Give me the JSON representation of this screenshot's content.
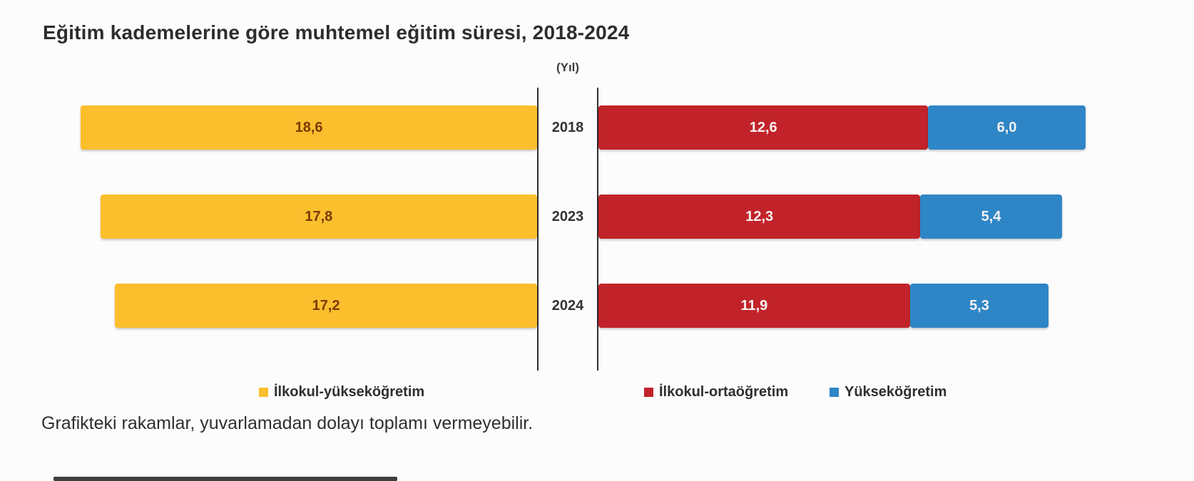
{
  "title": "Eğitim kademelerine göre muhtemel eğitim süresi, 2018-2024",
  "axis_unit_label": "(Yıl)",
  "footnote": "Grafikteki rakamlar, yuvarlamadan dolayı toplamı vermeyebilir.",
  "colors": {
    "background": "#FDFCFC",
    "yellow_series": "#FBBE2D",
    "red_series": "#C2232A",
    "blue_series": "#2E86C7",
    "yellow_bar_value_text": "#7A3B05",
    "red_blue_bar_value_text": "#FFFFFF",
    "axis_line": "#2F2F2F",
    "text": "#2D2D2D"
  },
  "chart_data": {
    "type": "bar",
    "orientation": "horizontal-diverging",
    "title": "Eğitim kademelerine göre muhtemel eğitim süresi, 2018-2024",
    "unit": "Yıl",
    "categories": [
      "2018",
      "2023",
      "2024"
    ],
    "series": [
      {
        "name": "İlkokul-yükseköğretim",
        "side": "left",
        "color": "#FBBE2D",
        "values": [
          18.6,
          17.8,
          17.2
        ],
        "labels": [
          "18,6",
          "17,8",
          "17,2"
        ]
      },
      {
        "name": "İlkokul-ortaöğretim",
        "side": "right",
        "color": "#C2232A",
        "values": [
          12.6,
          12.3,
          11.9
        ],
        "labels": [
          "12,6",
          "12,3",
          "11,9"
        ]
      },
      {
        "name": "Yükseköğretim",
        "side": "right-stacked",
        "color": "#2E86C7",
        "values": [
          6.0,
          5.4,
          5.3
        ],
        "labels": [
          "6,0",
          "5,4",
          "5,3"
        ]
      }
    ],
    "legend_position": "bottom",
    "grid": false,
    "note": "Grafikteki rakamlar, yuvarlamadan dolayı toplamı vermeyebilir."
  }
}
